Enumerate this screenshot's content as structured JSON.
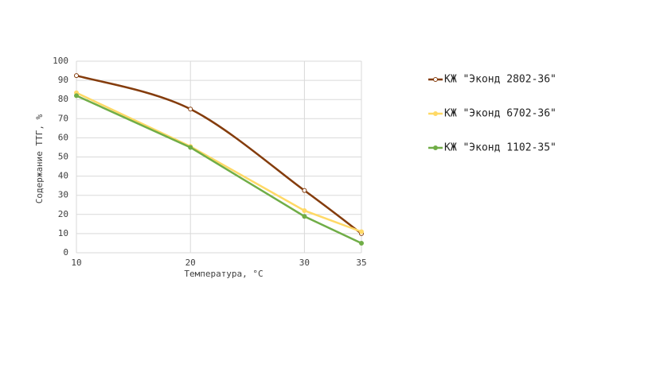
{
  "chart_data": {
    "type": "line",
    "xlabel": "Температура, °С",
    "ylabel": "Содержание ТТГ, %",
    "x": [
      10,
      20,
      30,
      35
    ],
    "xlim": [
      10,
      35
    ],
    "xticks": [
      10,
      20,
      30,
      35
    ],
    "ylim": [
      0,
      100
    ],
    "yticks": [
      0,
      10,
      20,
      30,
      40,
      50,
      60,
      70,
      80,
      90,
      100
    ],
    "grid": true,
    "legend": "right",
    "series": [
      {
        "name": "КЖ \"Эконд 2802-36\"",
        "color": "#843c0c",
        "smooth": true,
        "values": [
          92.5,
          75,
          32.5,
          10
        ]
      },
      {
        "name": "КЖ \"Эконд 6702-36\"",
        "color": "#ffd966",
        "smooth": false,
        "values": [
          83.5,
          55.5,
          22,
          11
        ]
      },
      {
        "name": "КЖ \"Эконд 1102-35\"",
        "color": "#70ad47",
        "smooth": false,
        "values": [
          82,
          55,
          19,
          5
        ]
      }
    ]
  }
}
